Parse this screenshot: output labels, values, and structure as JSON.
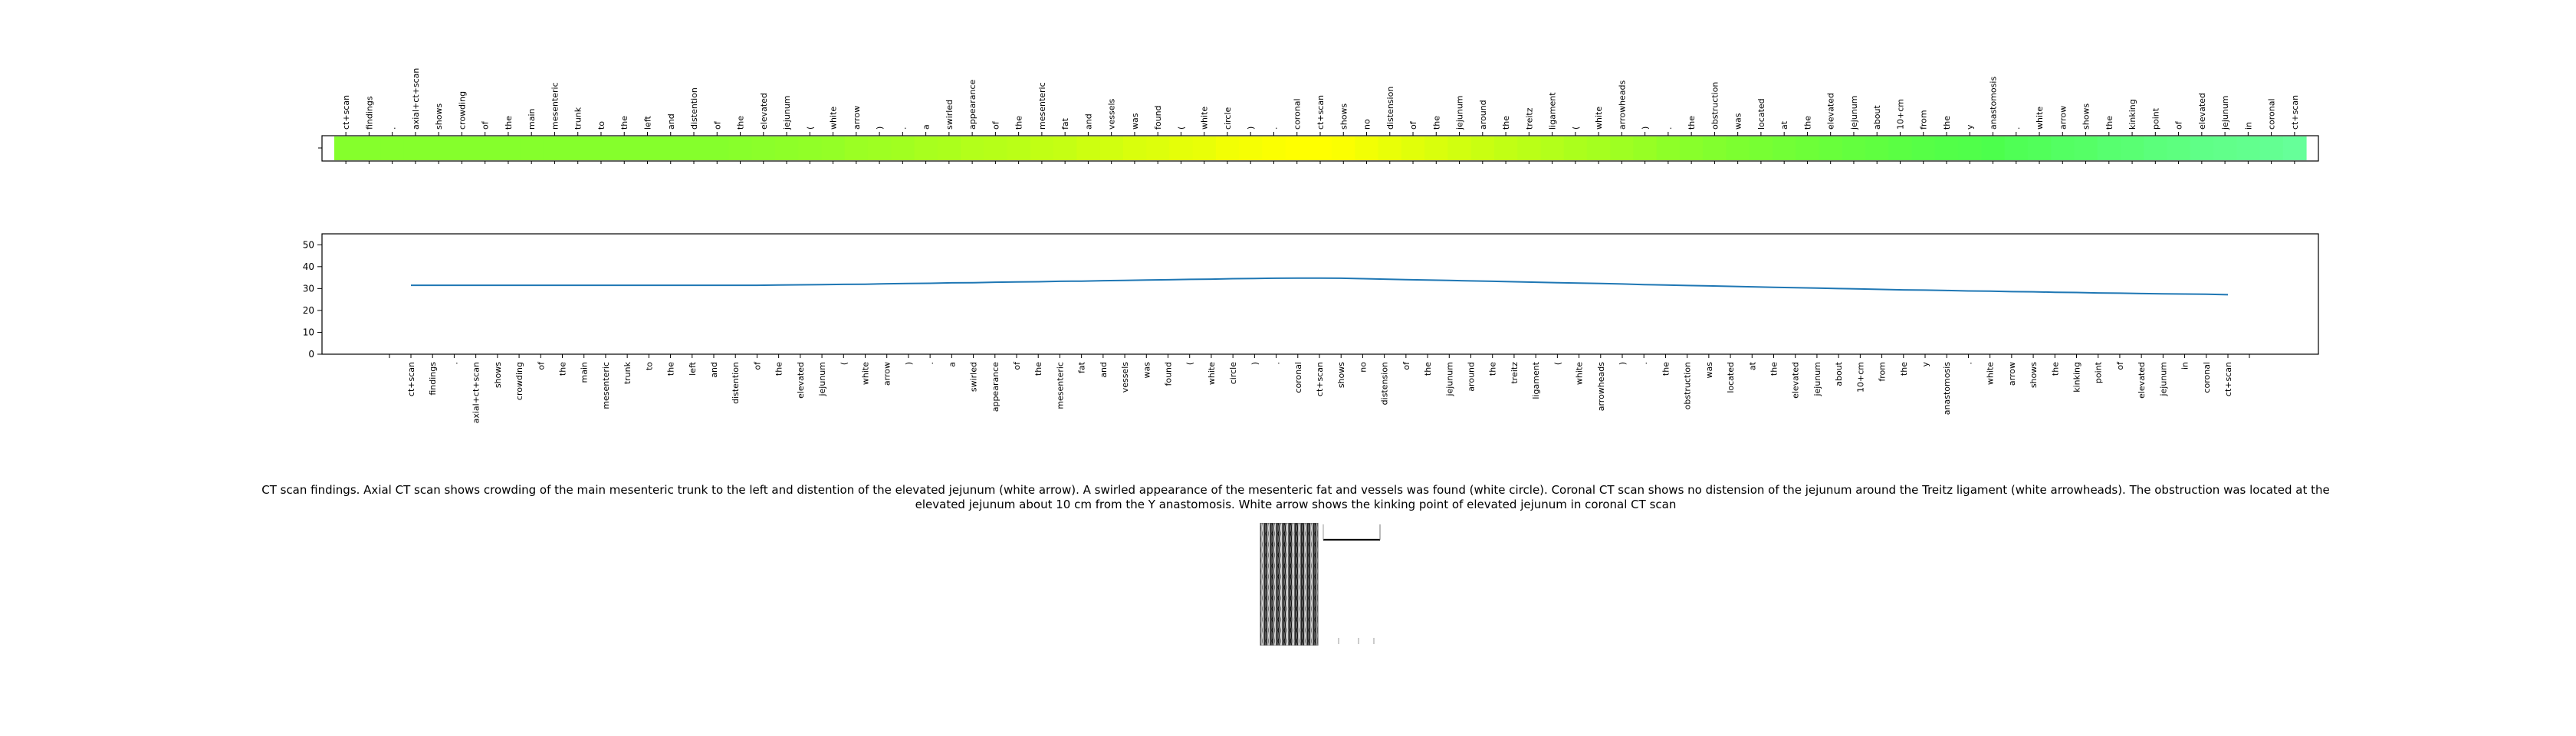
{
  "chart_data": [
    {
      "type": "heatmap",
      "tokens": [
        "ct+scan",
        "findings",
        ".",
        "axial+ct+scan",
        "shows",
        "crowding",
        "of",
        "the",
        "main",
        "mesenteric",
        "trunk",
        "to",
        "the",
        "left",
        "and",
        "distention",
        "of",
        "the",
        "elevated",
        "jejunum",
        "(",
        "white",
        "arrow",
        ")",
        ".",
        "a",
        "swirled",
        "appearance",
        "of",
        "the",
        "mesenteric",
        "fat",
        "and",
        "vessels",
        "was",
        "found",
        "(",
        "white",
        "circle",
        ")",
        ".",
        "coronal",
        "ct+scan",
        "shows",
        "no",
        "distension",
        "of",
        "the",
        "jejunum",
        "around",
        "the",
        "treitz",
        "ligament",
        "(",
        "white",
        "arrowheads",
        ")",
        ".",
        "the",
        "obstruction",
        "was",
        "located",
        "at",
        "the",
        "elevated",
        "jejunum",
        "about",
        "10+cm",
        "from",
        "the",
        "y",
        "anastomosis",
        ".",
        "white",
        "arrow",
        "shows",
        "the",
        "kinking",
        "point",
        "of",
        "elevated",
        "jejunum",
        "in",
        "coronal",
        "ct+scan"
      ],
      "values": [
        31.5,
        31.5,
        31.5,
        31.5,
        31.5,
        31.5,
        31.5,
        31.5,
        31.5,
        31.5,
        31.5,
        31.5,
        31.5,
        31.5,
        31.5,
        31.5,
        31.5,
        31.6,
        31.7,
        31.8,
        31.9,
        32.0,
        32.2,
        32.3,
        32.4,
        32.6,
        32.7,
        32.9,
        33.0,
        33.1,
        33.3,
        33.4,
        33.6,
        33.7,
        33.9,
        34.0,
        34.2,
        34.3,
        34.5,
        34.6,
        34.7,
        34.8,
        34.8,
        34.7,
        34.5,
        34.3,
        34.1,
        33.9,
        33.7,
        33.5,
        33.3,
        33.1,
        32.9,
        32.7,
        32.5,
        32.3,
        32.1,
        31.8,
        31.6,
        31.4,
        31.2,
        31.0,
        30.8,
        30.6,
        30.4,
        30.2,
        30.0,
        29.8,
        29.6,
        29.4,
        29.3,
        29.1,
        28.9,
        28.8,
        28.6,
        28.5,
        28.3,
        28.2,
        28.0,
        27.9,
        27.7,
        27.6,
        27.5,
        27.4,
        27.2
      ]
    },
    {
      "type": "line",
      "x": [
        "ct+scan",
        "findings",
        ".",
        "axial+ct+scan",
        "shows",
        "crowding",
        "of",
        "the",
        "main",
        "mesenteric",
        "trunk",
        "to",
        "the",
        "left",
        "and",
        "distention",
        "of",
        "the",
        "elevated",
        "jejunum",
        "(",
        "white",
        "arrow",
        ")",
        ".",
        "a",
        "swirled",
        "appearance",
        "of",
        "the",
        "mesenteric",
        "fat",
        "and",
        "vessels",
        "was",
        "found",
        "(",
        "white",
        "circle",
        ")",
        ".",
        "coronal",
        "ct+scan",
        "shows",
        "no",
        "distension",
        "of",
        "the",
        "jejunum",
        "around",
        "the",
        "treitz",
        "ligament",
        "(",
        "white",
        "arrowheads",
        ")",
        ".",
        "the",
        "obstruction",
        "was",
        "located",
        "at",
        "the",
        "elevated",
        "jejunum",
        "about",
        "10+cm",
        "from",
        "the",
        "y",
        "anastomosis",
        ".",
        "white",
        "arrow",
        "shows",
        "the",
        "kinking",
        "point",
        "of",
        "elevated",
        "jejunum",
        "in",
        "coronal",
        "ct+scan"
      ],
      "values": [
        31.5,
        31.5,
        31.5,
        31.5,
        31.5,
        31.5,
        31.5,
        31.5,
        31.5,
        31.5,
        31.5,
        31.5,
        31.5,
        31.5,
        31.5,
        31.5,
        31.5,
        31.6,
        31.7,
        31.8,
        31.9,
        32.0,
        32.2,
        32.3,
        32.4,
        32.6,
        32.7,
        32.9,
        33.0,
        33.1,
        33.3,
        33.4,
        33.6,
        33.7,
        33.9,
        34.0,
        34.2,
        34.3,
        34.5,
        34.6,
        34.7,
        34.8,
        34.8,
        34.7,
        34.5,
        34.3,
        34.1,
        33.9,
        33.7,
        33.5,
        33.3,
        33.1,
        32.9,
        32.7,
        32.5,
        32.3,
        32.1,
        31.8,
        31.6,
        31.4,
        31.2,
        31.0,
        30.8,
        30.6,
        30.4,
        30.2,
        30.0,
        29.8,
        29.6,
        29.4,
        29.3,
        29.1,
        28.9,
        28.8,
        28.6,
        28.5,
        28.3,
        28.2,
        28.0,
        27.9,
        27.7,
        27.6,
        27.5,
        27.4,
        27.2
      ],
      "ylim": [
        0,
        55
      ],
      "yticks": [
        0,
        10,
        20,
        30,
        40,
        50
      ],
      "color": "#1f77b4"
    }
  ],
  "caption": "CT scan findings. Axial CT scan shows crowding of the main mesenteric trunk to the left and distention of the elevated jejunum (white arrow). A swirled appearance of the mesenteric fat and vessels was found (white circle). Coronal CT scan shows no distension of the jejunum around the Treitz ligament (white arrowheads). The obstruction was located at the elevated jejunum about 10 cm from the Y anastomosis. White arrow shows the kinking point of elevated jejunum in coronal CT scan"
}
